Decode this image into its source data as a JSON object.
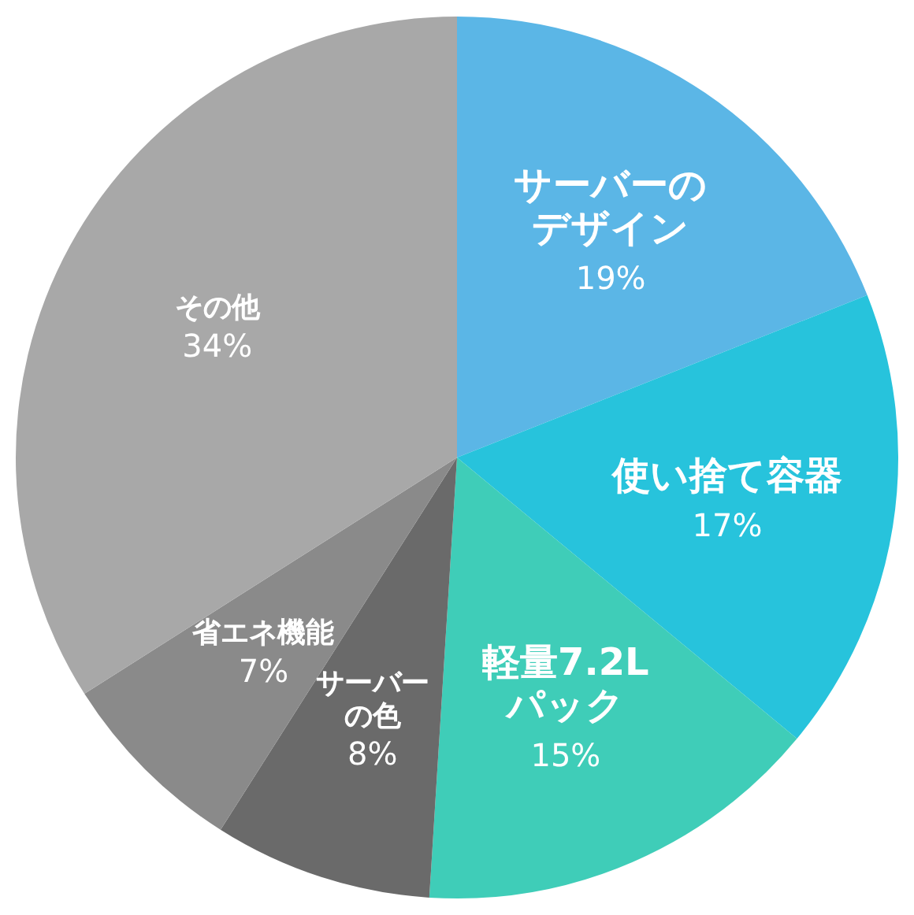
{
  "chart_data": {
    "type": "pie",
    "categories": [
      "サーバーのデザイン",
      "使い捨て容器",
      "軽量7.2Lパック",
      "サーバーの色",
      "省エネ機能",
      "その他"
    ],
    "values": [
      19,
      17,
      15,
      8,
      7,
      34
    ],
    "colors": [
      "#5bb6e6",
      "#27c3dc",
      "#3fcdb8",
      "#6a6a6a",
      "#8a8a8a",
      "#a8a8a8"
    ],
    "value_labels": [
      "19%",
      "17%",
      "15%",
      "8%",
      "7%",
      "34%"
    ],
    "legend": false
  }
}
